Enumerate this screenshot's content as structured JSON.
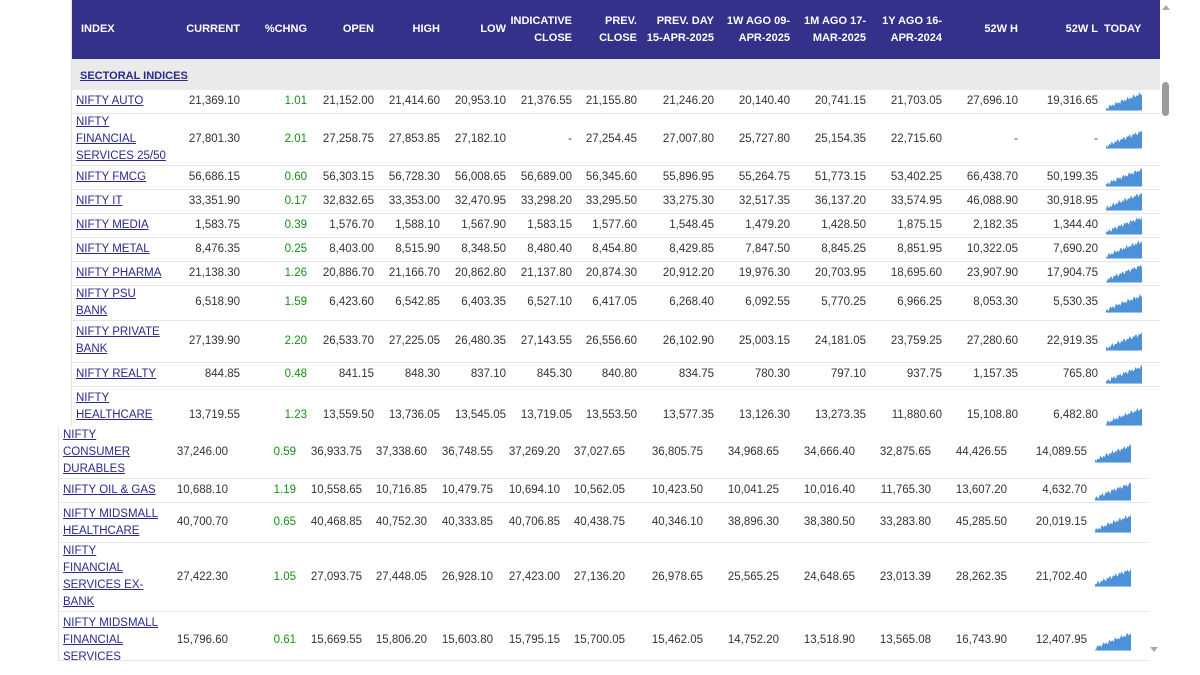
{
  "columns": [
    "INDEX",
    "CURRENT",
    "%CHNG",
    "OPEN",
    "HIGH",
    "LOW",
    "INDICATIVE CLOSE",
    "PREV. CLOSE",
    "PREV. DAY 15-APR-2025",
    "1W AGO 09-APR-2025",
    "1M AGO 17-MAR-2025",
    "1Y AGO 16-APR-2024",
    "52W H",
    "52W L",
    "TODAY"
  ],
  "section_title": "SECTORAL INDICES",
  "colors": {
    "header_bg": "#34318a",
    "link": "#2a2a8c",
    "positive": "#148f14",
    "spark": "#3a86d4",
    "section_bg": "#eaeaea"
  },
  "rows_top": [
    {
      "name": "NIFTY AUTO",
      "current": "21,369.10",
      "chng": "1.01",
      "open": "21,152.00",
      "high": "21,414.60",
      "low": "20,953.10",
      "ind_close": "21,376.55",
      "prev_close": "21,155.80",
      "prev_day": "21,246.20",
      "w1": "20,140.40",
      "m1": "20,741.15",
      "y1": "21,703.05",
      "h52": "27,696.10",
      "l52": "19,316.65"
    },
    {
      "name": "NIFTY FINANCIAL SERVICES 25/50",
      "current": "27,801.30",
      "chng": "2.01",
      "open": "27,258.75",
      "high": "27,853.85",
      "low": "27,182.10",
      "ind_close": "-",
      "prev_close": "27,254.45",
      "prev_day": "27,007.80",
      "w1": "25,727.80",
      "m1": "25,154.35",
      "y1": "22,715.60",
      "h52": "-",
      "l52": "-"
    },
    {
      "name": "NIFTY FMCG",
      "current": "56,686.15",
      "chng": "0.60",
      "open": "56,303.15",
      "high": "56,728.30",
      "low": "56,008.65",
      "ind_close": "56,689.00",
      "prev_close": "56,345.60",
      "prev_day": "55,896.95",
      "w1": "55,264.75",
      "m1": "51,773.15",
      "y1": "53,402.25",
      "h52": "66,438.70",
      "l52": "50,199.35"
    },
    {
      "name": "NIFTY IT",
      "current": "33,351.90",
      "chng": "0.17",
      "open": "32,832.65",
      "high": "33,353.00",
      "low": "32,470.95",
      "ind_close": "33,298.20",
      "prev_close": "33,295.50",
      "prev_day": "33,275.30",
      "w1": "32,517.35",
      "m1": "36,137.20",
      "y1": "33,574.95",
      "h52": "46,088.90",
      "l52": "30,918.95"
    },
    {
      "name": "NIFTY MEDIA",
      "current": "1,583.75",
      "chng": "0.39",
      "open": "1,576.70",
      "high": "1,588.10",
      "low": "1,567.90",
      "ind_close": "1,583.15",
      "prev_close": "1,577.60",
      "prev_day": "1,548.45",
      "w1": "1,479.20",
      "m1": "1,428.50",
      "y1": "1,875.15",
      "h52": "2,182.35",
      "l52": "1,344.40"
    },
    {
      "name": "NIFTY METAL",
      "current": "8,476.35",
      "chng": "0.25",
      "open": "8,403.00",
      "high": "8,515.90",
      "low": "8,348.50",
      "ind_close": "8,480.40",
      "prev_close": "8,454.80",
      "prev_day": "8,429.85",
      "w1": "7,847.50",
      "m1": "8,845.25",
      "y1": "8,851.95",
      "h52": "10,322.05",
      "l52": "7,690.20"
    },
    {
      "name": "NIFTY PHARMA",
      "current": "21,138.30",
      "chng": "1.26",
      "open": "20,886.70",
      "high": "21,166.70",
      "low": "20,862.80",
      "ind_close": "21,137.80",
      "prev_close": "20,874.30",
      "prev_day": "20,912.20",
      "w1": "19,976.30",
      "m1": "20,703.95",
      "y1": "18,695.60",
      "h52": "23,907.90",
      "l52": "17,904.75"
    },
    {
      "name": "NIFTY PSU BANK",
      "current": "6,518.90",
      "chng": "1.59",
      "open": "6,423.60",
      "high": "6,542.85",
      "low": "6,403.35",
      "ind_close": "6,527.10",
      "prev_close": "6,417.05",
      "prev_day": "6,268.40",
      "w1": "6,092.55",
      "m1": "5,770.25",
      "y1": "6,966.25",
      "h52": "8,053.30",
      "l52": "5,530.35"
    },
    {
      "name": "NIFTY PRIVATE BANK",
      "current": "27,139.90",
      "chng": "2.20",
      "open": "26,533.70",
      "high": "27,225.05",
      "low": "26,480.35",
      "ind_close": "27,143.55",
      "prev_close": "26,556.60",
      "prev_day": "26,102.90",
      "w1": "25,003.15",
      "m1": "24,181.05",
      "y1": "23,759.25",
      "h52": "27,280.60",
      "l52": "22,919.35"
    },
    {
      "name": "NIFTY REALTY",
      "current": "844.85",
      "chng": "0.48",
      "open": "841.15",
      "high": "848.30",
      "low": "837.10",
      "ind_close": "845.30",
      "prev_close": "840.80",
      "prev_day": "834.75",
      "w1": "780.30",
      "m1": "797.10",
      "y1": "937.75",
      "h52": "1,157.35",
      "l52": "765.80"
    },
    {
      "name": "NIFTY HEALTHCARE INDEX",
      "current": "13,719.55",
      "chng": "1.23",
      "open": "13,559.50",
      "high": "13,736.05",
      "low": "13,545.05",
      "ind_close": "13,719.05",
      "prev_close": "13,553.50",
      "prev_day": "13,577.35",
      "w1": "13,126.30",
      "m1": "13,273.35",
      "y1": "11,880.60",
      "h52": "15,108.80",
      "l52": "6,482.80"
    }
  ],
  "rows_bottom": [
    {
      "name": "NIFTY CONSUMER DURABLES",
      "current": "37,246.00",
      "chng": "0.59",
      "open": "36,933.75",
      "high": "37,338.60",
      "low": "36,748.55",
      "ind_close": "37,269.20",
      "prev_close": "37,027.65",
      "prev_day": "36,805.75",
      "w1": "34,968.65",
      "m1": "34,666.40",
      "y1": "32,875.65",
      "h52": "44,426.55",
      "l52": "14,089.55"
    },
    {
      "name": "NIFTY OIL & GAS",
      "current": "10,688.10",
      "chng": "1.19",
      "open": "10,558.65",
      "high": "10,716.85",
      "low": "10,479.75",
      "ind_close": "10,694.10",
      "prev_close": "10,562.05",
      "prev_day": "10,423.50",
      "w1": "10,041.25",
      "m1": "10,016.40",
      "y1": "11,765.30",
      "h52": "13,607.20",
      "l52": "4,632.70"
    },
    {
      "name": "NIFTY MIDSMALL HEALTHCARE",
      "current": "40,700.70",
      "chng": "0.65",
      "open": "40,468.85",
      "high": "40,752.30",
      "low": "40,333.85",
      "ind_close": "40,706.85",
      "prev_close": "40,438.75",
      "prev_day": "40,346.10",
      "w1": "38,896.30",
      "m1": "38,380.50",
      "y1": "33,283.80",
      "h52": "45,285.50",
      "l52": "20,019.15"
    },
    {
      "name": "NIFTY FINANCIAL SERVICES EX-BANK",
      "current": "27,422.30",
      "chng": "1.05",
      "open": "27,093.75",
      "high": "27,448.05",
      "low": "26,928.10",
      "ind_close": "27,423.00",
      "prev_close": "27,136.20",
      "prev_day": "26,978.65",
      "w1": "25,565.25",
      "m1": "24,648.65",
      "y1": "23,013.39",
      "h52": "28,262.35",
      "l52": "21,702.40"
    },
    {
      "name": "NIFTY MIDSMALL FINANCIAL SERVICES",
      "current": "15,796.60",
      "chng": "0.61",
      "open": "15,669.55",
      "high": "15,806.20",
      "low": "15,603.80",
      "ind_close": "15,795.15",
      "prev_close": "15,700.05",
      "prev_day": "15,462.05",
      "w1": "14,752.20",
      "m1": "13,518.90",
      "y1": "13,565.08",
      "h52": "16,743.90",
      "l52": "12,407.95"
    }
  ]
}
